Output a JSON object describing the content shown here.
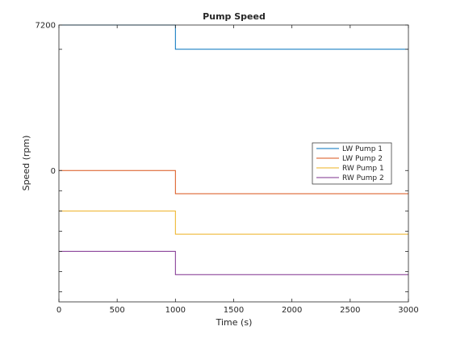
{
  "chart_data": {
    "type": "line",
    "title": "Pump Speed",
    "xlabel": "Time (s)",
    "ylabel": "Speed (rpm)",
    "xlim": [
      0,
      3000
    ],
    "xticks": [
      0,
      500,
      1000,
      1500,
      2000,
      2500,
      3000
    ],
    "xtick_labels": [
      "0",
      "500",
      "1000",
      "1500",
      "2000",
      "2500",
      "3000"
    ],
    "y_stacked_offset": true,
    "y_labeled_ticks": [
      "7200",
      "0"
    ],
    "grid": false,
    "legend_position": "right",
    "series": [
      {
        "name": "LW Pump 1",
        "color": "#0072BD",
        "x": [
          0,
          1000,
          1000,
          3000
        ],
        "y": [
          7200,
          7200,
          6000,
          6000
        ]
      },
      {
        "name": "LW Pump 2",
        "color": "#D95319",
        "x": [
          0,
          1000,
          1000,
          3000
        ],
        "y": [
          0,
          0,
          -1150,
          -1150
        ]
      },
      {
        "name": "RW Pump 1",
        "color": "#EDB120",
        "x": [
          0,
          1000,
          1000,
          3000
        ],
        "y": [
          -2000,
          -2000,
          -3150,
          -3150
        ]
      },
      {
        "name": "RW Pump 2",
        "color": "#7E2F8E",
        "x": [
          0,
          1000,
          1000,
          3000
        ],
        "y": [
          -4000,
          -4000,
          -5150,
          -5150
        ]
      }
    ]
  }
}
